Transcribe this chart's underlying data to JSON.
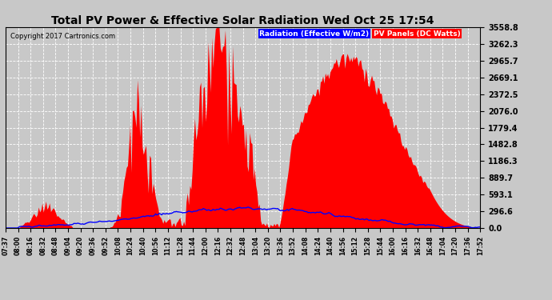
{
  "title": "Total PV Power & Effective Solar Radiation Wed Oct 25 17:54",
  "copyright": "Copyright 2017 Cartronics.com",
  "legend_radiation": "Radiation (Effective W/m2)",
  "legend_pv": "PV Panels (DC Watts)",
  "ymax": 3558.8,
  "yticks": [
    0.0,
    296.6,
    593.1,
    889.7,
    1186.3,
    1482.8,
    1779.4,
    2076.0,
    2372.5,
    2669.1,
    2965.7,
    3262.3,
    3558.8
  ],
  "bg_color": "#c8c8c8",
  "plot_bg_color": "#c8c8c8",
  "pv_color": "#ff0000",
  "radiation_color": "#0000ff",
  "grid_color": "#ffffff",
  "title_color": "#000000",
  "time_labels": [
    "07:37",
    "08:00",
    "08:16",
    "08:32",
    "08:48",
    "09:04",
    "09:20",
    "09:36",
    "09:52",
    "10:08",
    "10:24",
    "10:40",
    "10:56",
    "11:12",
    "11:28",
    "11:44",
    "12:00",
    "12:16",
    "12:32",
    "12:48",
    "13:04",
    "13:20",
    "13:36",
    "13:52",
    "14:08",
    "14:24",
    "14:40",
    "14:56",
    "15:12",
    "15:28",
    "15:44",
    "16:00",
    "16:16",
    "16:32",
    "16:48",
    "17:04",
    "17:20",
    "17:36",
    "17:52"
  ],
  "n_points": 390
}
